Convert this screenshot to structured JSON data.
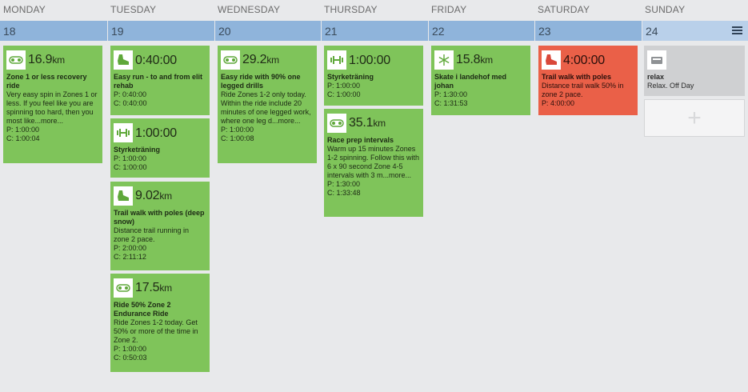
{
  "days": [
    "MONDAY",
    "TUESDAY",
    "WEDNESDAY",
    "THURSDAY",
    "FRIDAY",
    "SATURDAY",
    "SUNDAY"
  ],
  "dates": [
    "18",
    "19",
    "20",
    "21",
    "22",
    "23",
    "24"
  ],
  "colors": {
    "done": "#7fc45a",
    "missed": "#ea6048",
    "rest": "#cfd0d2",
    "header": "#8fb4db",
    "today": "#b9d0ea"
  },
  "workouts": {
    "mon1": {
      "icon": "bike-icon",
      "metric": "16.9",
      "unit": "km",
      "title": "Zone 1 or less recovery ride",
      "desc": "Very easy spin in Zones 1 or less. If you feel like you are spinning too hard, then you most like...more...",
      "p": "P: 1:00:00",
      "c": "C: 1:00:04"
    },
    "tue1": {
      "icon": "shoe-icon",
      "metric": "0:40:00",
      "unit": "",
      "title": "Easy run - to and from elit rehab",
      "desc": "",
      "p": "P: 0:40:00",
      "c": "C: 0:40:00"
    },
    "tue2": {
      "icon": "strength-icon",
      "metric": "1:00:00",
      "unit": "",
      "title": "Styrketräning",
      "desc": "",
      "p": "P: 1:00:00",
      "c": "C: 1:00:00"
    },
    "tue3": {
      "icon": "shoe-icon",
      "metric": "9.02",
      "unit": "km",
      "title": "Trail walk with poles (deep snow)",
      "desc": "Distance trail running in zone 2 pace.",
      "p": "P: 2:00:00",
      "c": "C: 2:11:12"
    },
    "tue4": {
      "icon": "bike-icon",
      "metric": "17.5",
      "unit": "km",
      "title": "Ride 50% Zone 2 Endurance Ride",
      "desc": "Ride Zones 1-2 today. Get 50% or more of the time in Zone 2.",
      "p": "P: 1:00:00",
      "c": "C: 0:50:03"
    },
    "wed1": {
      "icon": "bike-icon",
      "metric": "29.2",
      "unit": "km",
      "title": "Easy ride with 90% one legged drills",
      "desc": "Ride Zones 1-2 only today. Within the ride include 20 minutes of one legged work, where one leg d...more...",
      "p": "P: 1:00:00",
      "c": "C: 1:00:08"
    },
    "thu1": {
      "icon": "strength-icon",
      "metric": "1:00:00",
      "unit": "",
      "title": "Styrketräning",
      "desc": "",
      "p": "P: 1:00:00",
      "c": "C: 1:00:00"
    },
    "thu2": {
      "icon": "bike-icon",
      "metric": "35.1",
      "unit": "km",
      "title": "Race prep intervals",
      "desc": "Warm up 15 minutes Zones 1-2 spinning. Follow this with 6 x 90 second Zone 4-5 intervals with 3 m...more...",
      "p": "P: 1:30:00",
      "c": "C: 1:33:48"
    },
    "fri1": {
      "icon": "snowflake-icon",
      "metric": "15.8",
      "unit": "km",
      "title": "Skate i landehof med johan",
      "desc": "",
      "p": "P: 1:30:00",
      "c": "C: 1:31:53"
    },
    "sat1": {
      "icon": "shoe-icon",
      "metric": "4:00:00",
      "unit": "",
      "title": "Trail walk with poles",
      "desc": "Distance trail walk 50% in zone 2 pace.",
      "p": "P: 4:00:00",
      "c": ""
    },
    "sun1": {
      "icon": "rest-icon",
      "title": "relax",
      "desc": "Relax. Off Day"
    }
  },
  "add_label": "+"
}
